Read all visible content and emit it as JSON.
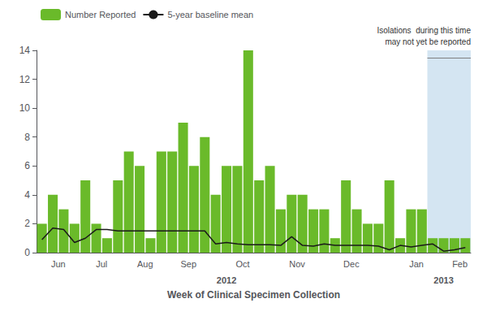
{
  "chart_data": {
    "type": "bar",
    "x": [
      1,
      2,
      3,
      4,
      5,
      6,
      7,
      8,
      9,
      10,
      11,
      12,
      13,
      14,
      15,
      16,
      17,
      18,
      19,
      20,
      21,
      22,
      23,
      24,
      25,
      26,
      27,
      28,
      29,
      30,
      31,
      32,
      33,
      34,
      35,
      36,
      37,
      38,
      39,
      40
    ],
    "series": [
      {
        "name": "Number Reported",
        "type": "bar",
        "color": "#6aba2a",
        "values": [
          2,
          4,
          3,
          2,
          5,
          2,
          1,
          5,
          7,
          6,
          1,
          7,
          7,
          9,
          6,
          8,
          4,
          6,
          6,
          14,
          5,
          6,
          3,
          4,
          4,
          3,
          3,
          1,
          5,
          3,
          2,
          2,
          5,
          1,
          3,
          3,
          1,
          1,
          1,
          1
        ]
      },
      {
        "name": "5-year baseline mean",
        "type": "line",
        "color": "#1a1a1a",
        "values": [
          0.9,
          1.7,
          1.6,
          0.7,
          1.0,
          1.6,
          1.6,
          1.5,
          1.5,
          1.5,
          1.5,
          1.5,
          1.5,
          1.5,
          1.5,
          1.5,
          0.6,
          0.7,
          0.6,
          0.55,
          0.55,
          0.55,
          0.5,
          1.1,
          0.5,
          0.45,
          0.6,
          0.5,
          0.5,
          0.5,
          0.5,
          0.45,
          0.2,
          0.5,
          0.4,
          0.5,
          0.6,
          0.1,
          0.2,
          0.35
        ]
      }
    ],
    "x_label": "Week of Clinical Specimen Collection",
    "xlim": [
      0.5,
      40.5
    ],
    "xticks": [
      {
        "value": 2.5,
        "label": "Jun"
      },
      {
        "value": 6.5,
        "label": "Jul"
      },
      {
        "value": 10.5,
        "label": "Aug"
      },
      {
        "value": 14.5,
        "label": "Sep"
      },
      {
        "value": 19.5,
        "label": "Oct"
      },
      {
        "value": 24.5,
        "label": "Nov"
      },
      {
        "value": 29.5,
        "label": "Dec"
      },
      {
        "value": 35.5,
        "label": "Jan"
      },
      {
        "value": 39.5,
        "label": "Feb"
      }
    ],
    "annotations": [
      {
        "text": "2012",
        "x": 18.0
      },
      {
        "text": "2013",
        "x": 38.0
      }
    ],
    "highlight": {
      "from": 36.5,
      "to": 40.5,
      "color": "#cce0f0",
      "bracket_y": 13.5,
      "text": "Isolations  during this time\nmay not yet be reported"
    },
    "ylim": [
      0,
      14
    ],
    "yticks": [
      0,
      2,
      4,
      6,
      8,
      10,
      12,
      14
    ],
    "grid": false,
    "legend": "upper left"
  }
}
